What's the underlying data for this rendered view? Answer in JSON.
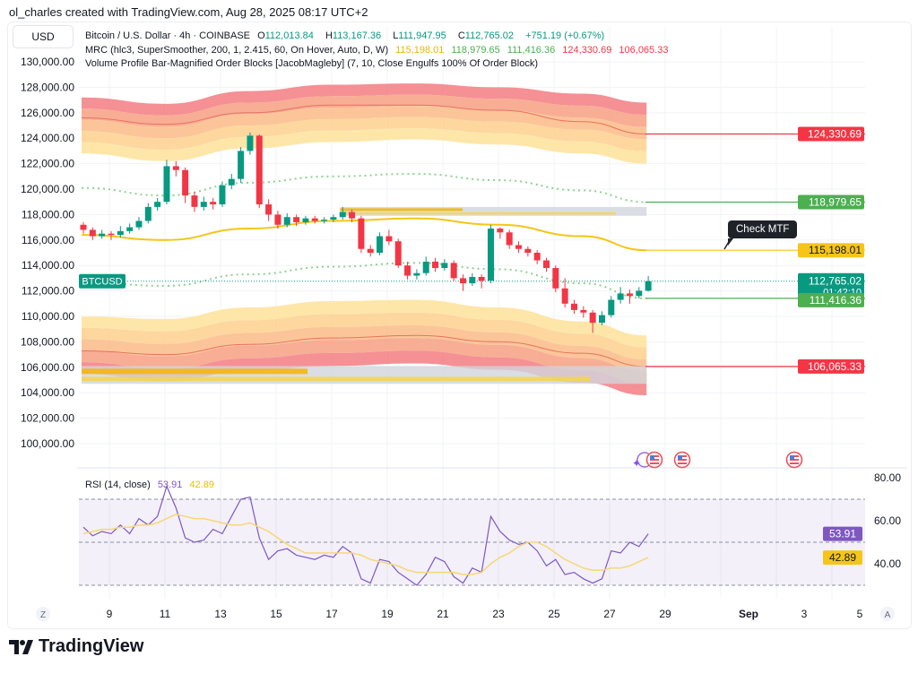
{
  "attribution": "ol_charles created with TradingView.com, Aug 28, 2025 08:17 UTC+2",
  "currency": "USD",
  "legend": {
    "symbol": "Bitcoin / U.S. Dollar · 4h · COINBASE",
    "o_label": "O",
    "o": "112,013.84",
    "h_label": "H",
    "h": "113,167.36",
    "l_label": "L",
    "l": "111,947.95",
    "c_label": "C",
    "c": "112,765.02",
    "change": "+751.19 (+0.67%)",
    "mrc": "MRC (hlc3, SuperSmoother, 200, 1, 2.415, 60, On Hover, Auto, D, W)",
    "mrc_values": [
      "115,198.01",
      "118,979.65",
      "111,416.36",
      "124,330.69",
      "106,065.33"
    ],
    "vp": "Volume Profile Bar-Magnified Order Blocks [JacobMagleby] (7, 10, Close Engulfs 100% Of Order Block)"
  },
  "badges": {
    "r1": "124,330.69",
    "s1g": "118,979.65",
    "mean": "115,198.01",
    "last": "112,765.02",
    "countdown": "01:42:10",
    "s2g": "111,416.36",
    "r2": "106,065.33",
    "symbol_tag": "BTCUSD"
  },
  "annotation": "Check MTF",
  "rsi_legend": {
    "title": "RSI (14, close)",
    "rsi": "53.91",
    "ma": "42.89"
  },
  "colors": {
    "up": "#089981",
    "down": "#f23645",
    "mean": "#f5c518",
    "green_level": "#4caf50",
    "red_level": "#f23645",
    "rsi": "#7e57c2",
    "rsi_ma": "#f7d774"
  },
  "icons": [
    "z-icon",
    "a-icon",
    "us-flag-event-icon",
    "ai-sparkle-icon",
    "tradingview-logo"
  ],
  "logo_text": "TradingView",
  "chart_data": [
    {
      "type": "candlestick",
      "title": "Bitcoin / U.S. Dollar · 4h · COINBASE",
      "ylim": [
        98000,
        131000
      ],
      "y_ticks": [
        "130,000.00",
        "128,000.00",
        "126,000.00",
        "124,000.00",
        "122,000.00",
        "120,000.00",
        "118,000.00",
        "116,000.00",
        "114,000.00",
        "112,000.00",
        "110,000.00",
        "108,000.00",
        "106,000.00",
        "104,000.00",
        "102,000.00",
        "100,000.00"
      ],
      "x_ticks": [
        "9",
        "11",
        "13",
        "15",
        "17",
        "19",
        "21",
        "23",
        "25",
        "27",
        "29",
        "Sep",
        "3",
        "5"
      ],
      "start": "Aug 8",
      "ohlc": [
        [
          117200,
          117400,
          116500,
          116800
        ],
        [
          116800,
          117000,
          116000,
          116300
        ],
        [
          116300,
          116800,
          116100,
          116500
        ],
        [
          116500,
          116700,
          116000,
          116400
        ],
        [
          116400,
          117100,
          116200,
          116700
        ],
        [
          116700,
          117300,
          116500,
          117000
        ],
        [
          117000,
          117800,
          116800,
          117500
        ],
        [
          117500,
          118900,
          117300,
          118600
        ],
        [
          118600,
          119300,
          118300,
          119000
        ],
        [
          119000,
          122300,
          118800,
          121800
        ],
        [
          121800,
          122200,
          121000,
          121500
        ],
        [
          121500,
          121700,
          118900,
          119500
        ],
        [
          119500,
          119800,
          118200,
          118600
        ],
        [
          118600,
          119400,
          118300,
          119000
        ],
        [
          119000,
          119300,
          118400,
          118800
        ],
        [
          118800,
          120600,
          118600,
          120300
        ],
        [
          120300,
          121200,
          120000,
          120800
        ],
        [
          120800,
          123300,
          120500,
          123000
        ],
        [
          123000,
          124450,
          122700,
          124200
        ],
        [
          124200,
          124300,
          118500,
          118800
        ],
        [
          118800,
          119200,
          117500,
          118000
        ],
        [
          118000,
          118300,
          116900,
          117200
        ],
        [
          117200,
          118100,
          117000,
          117800
        ],
        [
          117800,
          118000,
          117100,
          117400
        ],
        [
          117400,
          117900,
          117200,
          117700
        ],
        [
          117700,
          117900,
          117300,
          117500
        ],
        [
          117500,
          117800,
          117300,
          117600
        ],
        [
          117600,
          118000,
          117400,
          117800
        ],
        [
          117800,
          118600,
          117600,
          118200
        ],
        [
          118200,
          118400,
          117400,
          117700
        ],
        [
          117700,
          117900,
          115000,
          115300
        ],
        [
          115300,
          115600,
          114700,
          115000
        ],
        [
          115000,
          116600,
          114800,
          116300
        ],
        [
          116300,
          116800,
          115600,
          115900
        ],
        [
          115900,
          116100,
          113800,
          114000
        ],
        [
          114000,
          114300,
          112900,
          113200
        ],
        [
          113200,
          113700,
          112900,
          113400
        ],
        [
          113400,
          114700,
          113200,
          114300
        ],
        [
          114300,
          114600,
          113500,
          113800
        ],
        [
          113800,
          114500,
          113600,
          114200
        ],
        [
          114200,
          114400,
          112800,
          113000
        ],
        [
          113000,
          113300,
          112000,
          112600
        ],
        [
          112600,
          113400,
          112400,
          113100
        ],
        [
          113100,
          113300,
          112200,
          112800
        ],
        [
          112800,
          117200,
          112600,
          116900
        ],
        [
          116900,
          117000,
          116100,
          116600
        ],
        [
          116600,
          116800,
          115300,
          115600
        ],
        [
          115600,
          115900,
          115000,
          115300
        ],
        [
          115300,
          115500,
          114700,
          115000
        ],
        [
          115000,
          115200,
          114100,
          114400
        ],
        [
          114400,
          114600,
          113500,
          113800
        ],
        [
          113800,
          114000,
          111900,
          112200
        ],
        [
          112200,
          113000,
          110700,
          111000
        ],
        [
          111000,
          111300,
          110200,
          110500
        ],
        [
          110500,
          110800,
          109900,
          110300
        ],
        [
          110300,
          110500,
          108700,
          109500
        ],
        [
          109500,
          110400,
          109300,
          110100
        ],
        [
          110100,
          111600,
          109900,
          111300
        ],
        [
          111300,
          112300,
          111000,
          111800
        ],
        [
          111800,
          112100,
          111000,
          111600
        ],
        [
          111600,
          112300,
          111400,
          112013.84
        ],
        [
          112013.84,
          113167.36,
          111947.95,
          112765.02
        ]
      ],
      "mrc_x_days": [
        8,
        11,
        14,
        17,
        20,
        23,
        26,
        28.33
      ],
      "mrc": {
        "upper_outer": [
          127200,
          126700,
          127700,
          128200,
          128300,
          128000,
          127500,
          126800
        ],
        "upper_mid": [
          125600,
          125100,
          126000,
          126600,
          126600,
          126200,
          125300,
          124330.69
        ],
        "upper_inner": [
          122800,
          122200,
          123200,
          123700,
          123900,
          123500,
          122800,
          122000
        ],
        "upper_dotted": [
          120100,
          119500,
          120500,
          121000,
          121200,
          120700,
          119900,
          118979.65
        ],
        "mean": [
          116400,
          116000,
          116900,
          117500,
          117700,
          117200,
          116300,
          115198.01
        ],
        "lower_dotted": [
          112700,
          112400,
          113300,
          113900,
          114200,
          113700,
          112600,
          111416.36
        ],
        "lower_inner": [
          110000,
          109800,
          110700,
          111200,
          111300,
          110700,
          109600,
          108500
        ],
        "lower_mid": [
          107300,
          107000,
          107800,
          108300,
          108500,
          108000,
          107100,
          106065.33
        ],
        "lower_outer": [
          105500,
          104900,
          105700,
          106100,
          106300,
          105800,
          104800,
          103800
        ]
      },
      "order_blocks": [
        {
          "from_day": 17.3,
          "to_day": 28.33,
          "top": 118600,
          "bottom": 117900
        },
        {
          "from_day": 8,
          "to_day": 28.33,
          "top": 106100,
          "bottom": 104700
        }
      ],
      "levels": [
        124330.69,
        118979.65,
        115198.01,
        112765.02,
        111416.36,
        106065.33
      ]
    },
    {
      "type": "line",
      "title": "RSI (14, close)",
      "ylim": [
        20,
        82
      ],
      "y_ticks": [
        "80.00",
        "60.00",
        "40.00"
      ],
      "bands": [
        70,
        50,
        30
      ],
      "series": [
        {
          "name": "RSI",
          "values": [
            57,
            53,
            55,
            54,
            58,
            54,
            61,
            58,
            62,
            76,
            66,
            52,
            50,
            51,
            56,
            54,
            62,
            70,
            71,
            52,
            42,
            46,
            47,
            44,
            43,
            42,
            44,
            43,
            48,
            45,
            33,
            31,
            42,
            41,
            36,
            33,
            30,
            35,
            43,
            41,
            34,
            31,
            38,
            36,
            62,
            55,
            51,
            49,
            50,
            46,
            39,
            42,
            35,
            36,
            33,
            31,
            33,
            46,
            45,
            50,
            48,
            53.91
          ]
        },
        {
          "name": "MA",
          "values": [
            54,
            55,
            56,
            56,
            57,
            57,
            58,
            58,
            59,
            61,
            63,
            62,
            61,
            61,
            60,
            59,
            58,
            58,
            59,
            57,
            55,
            52,
            49,
            47,
            45,
            45,
            45,
            45,
            45,
            45,
            44,
            42,
            41,
            40,
            39,
            37,
            36,
            36,
            36,
            36,
            36,
            35,
            35,
            36,
            40,
            43,
            45,
            48,
            50,
            50,
            48,
            45,
            42,
            40,
            38,
            37,
            37,
            38,
            38,
            39,
            41,
            42.89
          ]
        }
      ]
    }
  ]
}
